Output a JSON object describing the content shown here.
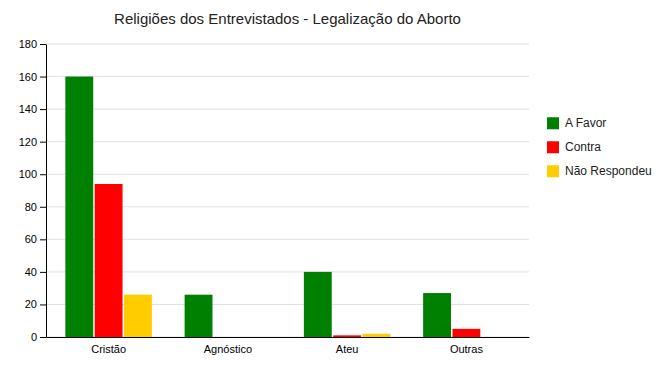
{
  "chart_data": {
    "type": "bar",
    "title": "Religiões dos Entrevistados - Legalização do Aborto",
    "categories": [
      "Cristão",
      "Agnóstico",
      "Ateu",
      "Outras"
    ],
    "series": [
      {
        "name": "A Favor",
        "color": "#008000",
        "values": [
          160,
          26,
          40,
          27
        ]
      },
      {
        "name": "Contra",
        "color": "#ff0000",
        "values": [
          94,
          0,
          1,
          5
        ]
      },
      {
        "name": "Não Respondeu",
        "color": "#ffcc00",
        "values": [
          26,
          0,
          2,
          0
        ]
      }
    ],
    "ylim": [
      0,
      180
    ],
    "yticks": [
      0,
      20,
      40,
      60,
      80,
      100,
      120,
      140,
      160,
      180
    ],
    "grid": true,
    "legend": "right"
  }
}
